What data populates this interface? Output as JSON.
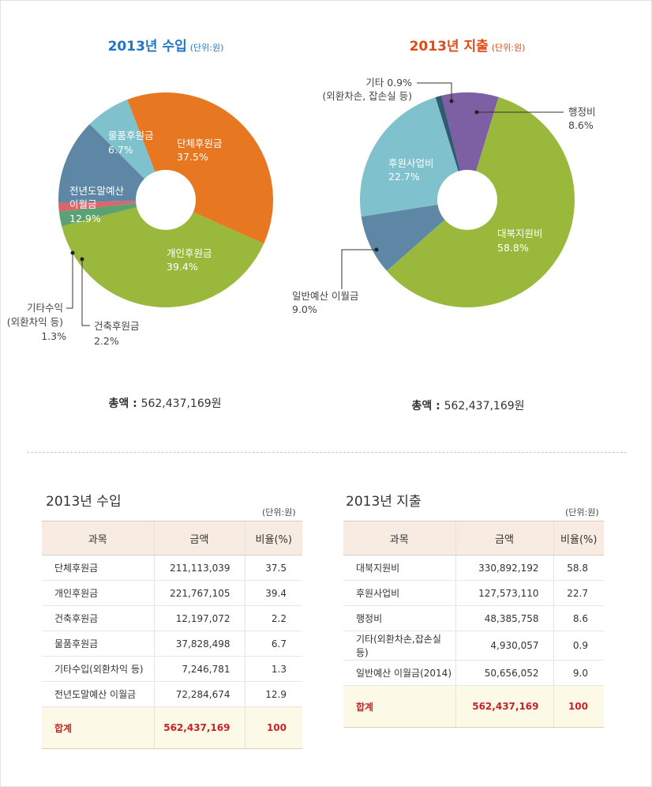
{
  "income": {
    "title": "2013년 수입",
    "unit": "(단위:원)",
    "total_label": "총액 :",
    "total_value": "562,437,169원",
    "slices": [
      {
        "name": "단체후원금",
        "pct": 37.5,
        "color": "#e87722"
      },
      {
        "name": "개인후원금",
        "pct": 39.4,
        "color": "#9ab93c"
      },
      {
        "name": "건축후원금",
        "pct": 2.2,
        "color": "#5ba173"
      },
      {
        "name": "기타수익",
        "pct": 1.3,
        "color": "#d8666a"
      },
      {
        "name": "전년도말예산 이월금",
        "pct": 12.9,
        "color": "#5e87a6"
      },
      {
        "name": "물품후원금",
        "pct": 6.7,
        "color": "#7fc2cd"
      }
    ],
    "labels": {
      "danche": [
        "단체후원금",
        "37.5%"
      ],
      "gaein": [
        "개인후원금",
        "39.4%"
      ],
      "mulpum": [
        "물품후원금",
        "6.7%"
      ],
      "jeonnyeon": [
        "전년도말예산",
        "이월금",
        "12.9%"
      ],
      "gita": [
        "기타수익",
        "(외환차익 등)",
        "1.3%"
      ],
      "geonchuk": [
        "건축후원금",
        "2.2%"
      ]
    }
  },
  "expense": {
    "title": "2013년 지출",
    "unit": "(단위:원)",
    "total_label": "총액 :",
    "total_value": "562,437,169원",
    "slices": [
      {
        "name": "행정비",
        "pct": 8.6,
        "color": "#7d5fa3"
      },
      {
        "name": "대북지원비",
        "pct": 58.8,
        "color": "#9ab93c"
      },
      {
        "name": "일반예산 이월금",
        "pct": 9.0,
        "color": "#5e87a6"
      },
      {
        "name": "후원사업비",
        "pct": 22.7,
        "color": "#7fc2cd"
      },
      {
        "name": "기타",
        "pct": 0.9,
        "color": "#2f5a70"
      }
    ],
    "labels": {
      "haengjeong": [
        "행정비",
        "8.6%"
      ],
      "daebuk": [
        "대북지원비",
        "58.8%"
      ],
      "ilban": [
        "일반예산 이월금",
        "9.0%"
      ],
      "huwon": [
        "후원사업비",
        "22.7%"
      ],
      "gita": [
        "기타 0.9%",
        "(외환차손, 잡손실 등)"
      ]
    }
  },
  "income_table": {
    "title": "2013년 수입",
    "unit": "(단위:원)",
    "headers": [
      "과목",
      "금액",
      "비율(%)"
    ],
    "rows": [
      [
        "단체후원금",
        "211,113,039",
        "37.5"
      ],
      [
        "개인후원금",
        "221,767,105",
        "39.4"
      ],
      [
        "건축후원금",
        "12,197,072",
        "2.2"
      ],
      [
        "물품후원금",
        "37,828,498",
        "6.7"
      ],
      [
        "기타수입(외환차익 등)",
        "7,246,781",
        "1.3"
      ],
      [
        "전년도말예산 이월금",
        "72,284,674",
        "12.9"
      ]
    ],
    "sum": [
      "합계",
      "562,437,169",
      "100"
    ]
  },
  "expense_table": {
    "title": "2013년 지출",
    "unit": "(단위:원)",
    "headers": [
      "과목",
      "금액",
      "비율(%)"
    ],
    "rows": [
      [
        "대북지원비",
        "330,892,192",
        "58.8"
      ],
      [
        "후원사업비",
        "127,573,110",
        "22.7"
      ],
      [
        "행정비",
        "48,385,758",
        "8.6"
      ],
      [
        "기타(외환차손,잡손실 등)",
        "4,930,057",
        "0.9"
      ],
      [
        "일반예산 이월금(2014)",
        "50,656,052",
        "9.0"
      ]
    ],
    "sum": [
      "합계",
      "562,437,169",
      "100"
    ]
  },
  "chart_data": [
    {
      "type": "pie",
      "title": "2013년 수입",
      "categories": [
        "단체후원금",
        "개인후원금",
        "건축후원금",
        "기타수익",
        "전년도말예산 이월금",
        "물품후원금"
      ],
      "values": [
        37.5,
        39.4,
        2.2,
        1.3,
        12.9,
        6.7
      ]
    },
    {
      "type": "pie",
      "title": "2013년 지출",
      "categories": [
        "행정비",
        "대북지원비",
        "일반예산 이월금",
        "후원사업비",
        "기타"
      ],
      "values": [
        8.6,
        58.8,
        9.0,
        22.7,
        0.9
      ]
    }
  ]
}
